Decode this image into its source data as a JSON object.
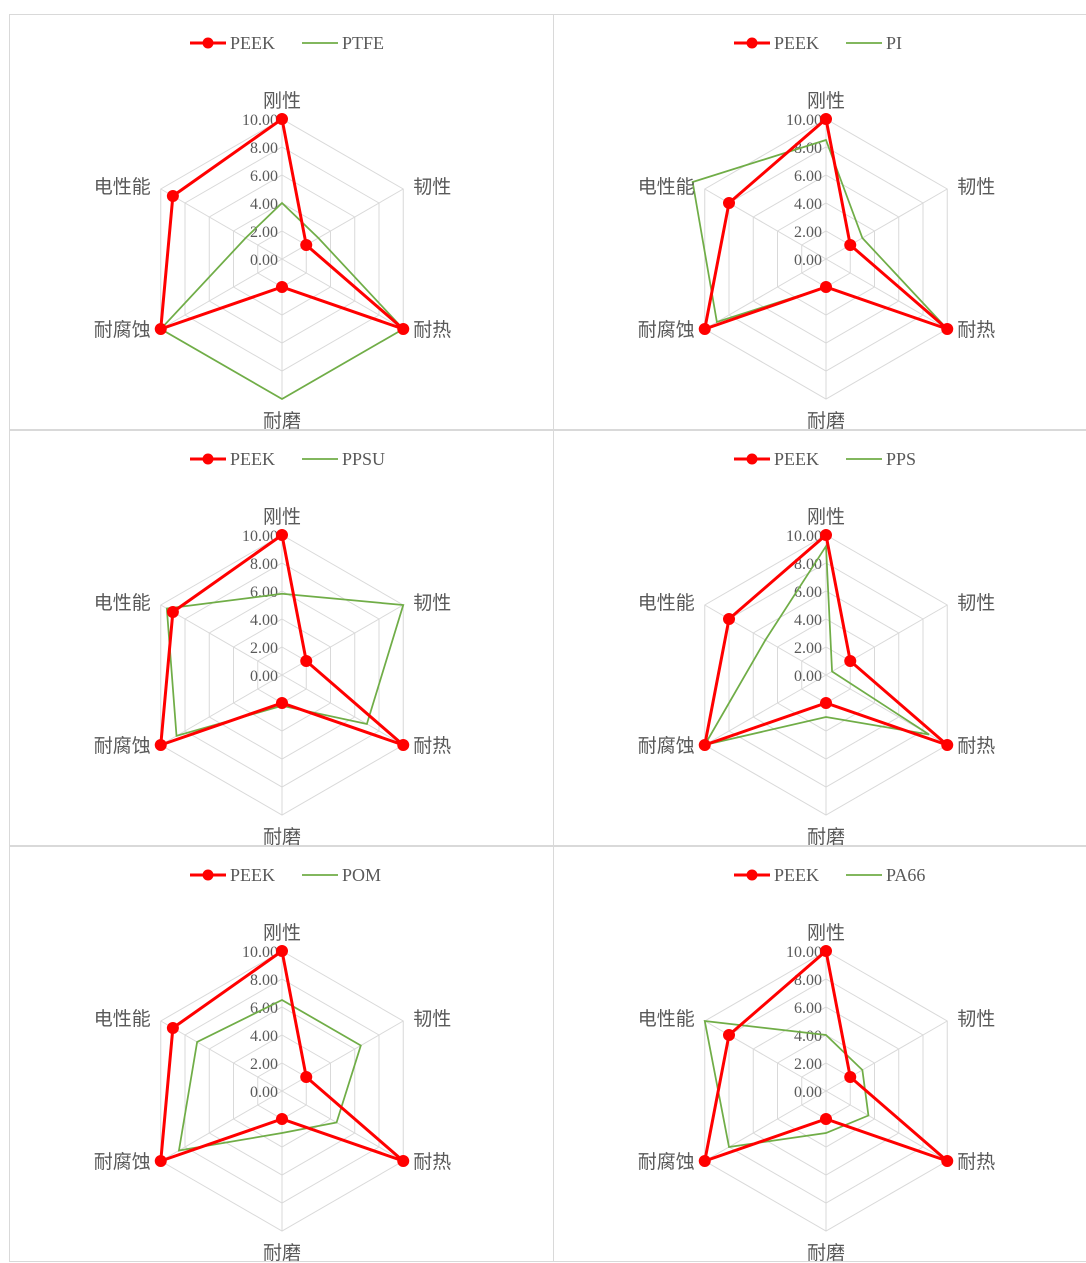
{
  "colors": {
    "peek": "#ff0000",
    "comparison": "#70ad47",
    "grid": "#d9d9d9",
    "text": "#595959",
    "border": "#d9d9d9"
  },
  "axes": [
    "刚性",
    "韧性",
    "耐热",
    "耐磨",
    "耐腐蚀",
    "电性能"
  ],
  "ticks": [
    "0.00",
    "2.00",
    "4.00",
    "6.00",
    "8.00",
    "10.00"
  ],
  "chart_data": [
    {
      "type": "radar",
      "categories": [
        "刚性",
        "韧性",
        "耐热",
        "耐磨",
        "耐腐蚀",
        "电性能"
      ],
      "rlim": [
        0,
        10
      ],
      "grid": true,
      "legend": "top",
      "series": [
        {
          "name": "PEEK",
          "values": [
            10,
            2,
            10,
            2,
            10,
            9
          ]
        },
        {
          "name": "PTFE",
          "values": [
            4,
            3,
            10,
            10,
            10,
            3
          ]
        }
      ]
    },
    {
      "type": "radar",
      "categories": [
        "刚性",
        "韧性",
        "耐热",
        "耐磨",
        "耐腐蚀",
        "电性能"
      ],
      "rlim": [
        0,
        10
      ],
      "grid": true,
      "legend": "top",
      "series": [
        {
          "name": "PEEK",
          "values": [
            10,
            2,
            10,
            2,
            10,
            8
          ]
        },
        {
          "name": "PI",
          "values": [
            8.5,
            3,
            10,
            2,
            9,
            11
          ]
        }
      ]
    },
    {
      "type": "radar",
      "categories": [
        "刚性",
        "韧性",
        "耐热",
        "耐磨",
        "耐腐蚀",
        "电性能"
      ],
      "rlim": [
        0,
        10
      ],
      "grid": true,
      "legend": "top",
      "series": [
        {
          "name": "PEEK",
          "values": [
            10,
            2,
            10,
            2,
            10,
            9
          ]
        },
        {
          "name": "PPSU",
          "values": [
            5.8,
            10,
            7,
            2.2,
            8.7,
            9.5
          ]
        }
      ]
    },
    {
      "type": "radar",
      "categories": [
        "刚性",
        "韧性",
        "耐热",
        "耐磨",
        "耐腐蚀",
        "电性能"
      ],
      "rlim": [
        0,
        10
      ],
      "grid": true,
      "legend": "top",
      "series": [
        {
          "name": "PEEK",
          "values": [
            10,
            2,
            10,
            2,
            10,
            8
          ]
        },
        {
          "name": "PPS",
          "values": [
            9.2,
            0.5,
            8.5,
            3,
            10,
            5
          ]
        }
      ]
    },
    {
      "type": "radar",
      "categories": [
        "刚性",
        "韧性",
        "耐热",
        "耐磨",
        "耐腐蚀",
        "电性能"
      ],
      "rlim": [
        0,
        10
      ],
      "grid": true,
      "legend": "top",
      "series": [
        {
          "name": "PEEK",
          "values": [
            10,
            2,
            10,
            2,
            10,
            9
          ]
        },
        {
          "name": "POM",
          "values": [
            6.5,
            6.5,
            4.5,
            3,
            8.5,
            7
          ]
        }
      ]
    },
    {
      "type": "radar",
      "categories": [
        "刚性",
        "韧性",
        "耐热",
        "耐磨",
        "耐腐蚀",
        "电性能"
      ],
      "rlim": [
        0,
        10
      ],
      "grid": true,
      "legend": "top",
      "series": [
        {
          "name": "PEEK",
          "values": [
            10,
            2,
            10,
            2,
            10,
            8
          ]
        },
        {
          "name": "PA66",
          "values": [
            4,
            3,
            3.5,
            3,
            8,
            10
          ]
        }
      ]
    }
  ]
}
